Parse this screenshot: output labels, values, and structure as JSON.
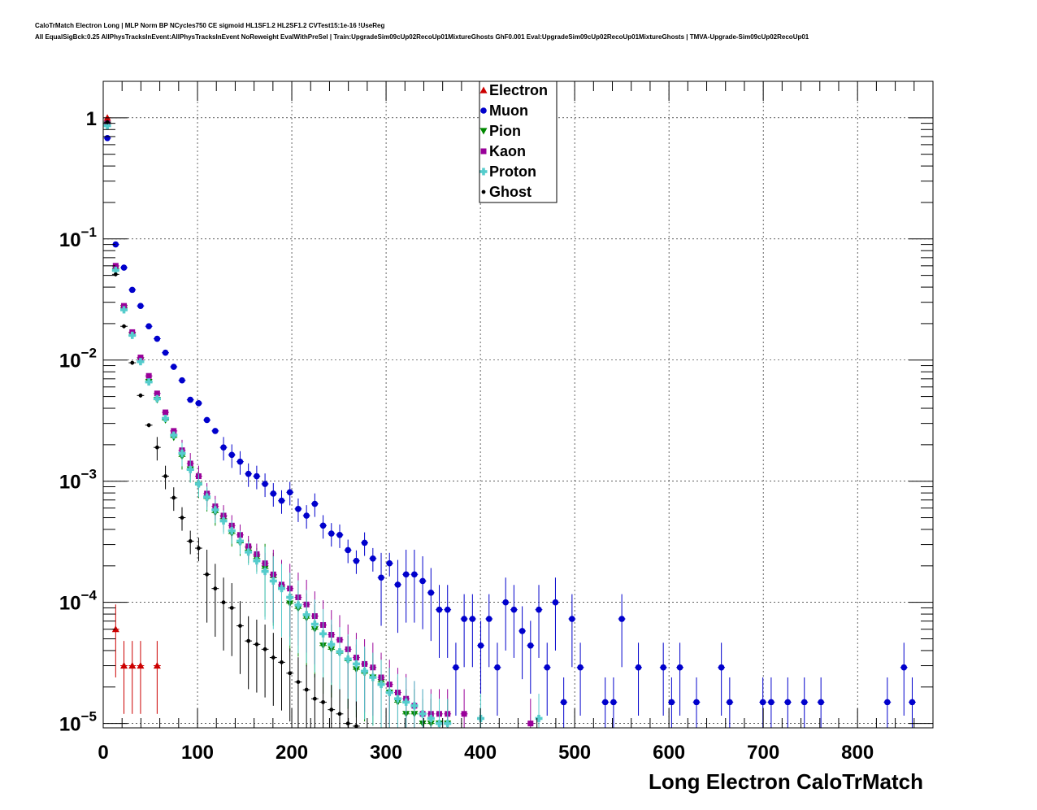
{
  "title_lines": [
    "CaloTrMatch Electron Long | MLP Norm BP NCycles750 CE sigmoid HL1SF1.2 HL2SF1.2 CVTest15:1e-16 !UseReg",
    "All EqualSigBck:0.25 AllPhysTracksInEvent:AllPhysTracksInEvent NoReweight EvalWithPreSel | Train:UpgradeSim09cUp02RecoUp01MixtureGhosts GhF0.001 Eval:UpgradeSim09cUp02RecoUp01MixtureGhosts | TMVA-Upgrade-Sim09cUp02RecoUp01"
  ],
  "chart_data": {
    "type": "scatter",
    "xlabel": "Long Electron CaloTrMatch",
    "ylabel": "",
    "xlim": [
      0,
      880
    ],
    "ylim": [
      9.2e-06,
      2.0
    ],
    "yscale": "log",
    "grid": true,
    "legend_position": "top-center",
    "x_ticks": [
      0,
      100,
      200,
      300,
      400,
      500,
      600,
      700,
      800
    ],
    "x_tick_labels": [
      "0",
      "100",
      "200",
      "300",
      "400",
      "500",
      "600",
      "700",
      "800"
    ],
    "y_ticks": [
      1,
      0.1,
      0.01,
      0.001,
      0.0001,
      1e-05
    ],
    "y_tick_labels": [
      {
        "base": "1",
        "exp": ""
      },
      {
        "base": "10",
        "exp": "−1"
      },
      {
        "base": "10",
        "exp": "−2"
      },
      {
        "base": "10",
        "exp": "−3"
      },
      {
        "base": "10",
        "exp": "−4"
      },
      {
        "base": "10",
        "exp": "−5"
      }
    ],
    "series": [
      {
        "name": "Electron",
        "color": "#cc0000",
        "marker": "triangle",
        "x": [
          4.4,
          13.2,
          22,
          30.8,
          39.6,
          57.2
        ],
        "y": [
          1.0,
          6e-05,
          3e-05,
          3e-05,
          3e-05,
          3e-05
        ]
      },
      {
        "name": "Muon",
        "color": "#0000cc",
        "marker": "circle",
        "x": [
          4.4,
          13.2,
          22,
          30.8,
          39.6,
          48.4,
          57.2,
          66,
          74.8,
          83.6,
          92.4,
          101.2,
          110,
          118.8,
          127.6,
          136.4,
          145.2,
          154,
          162.8,
          171.6,
          180.4,
          189.2,
          198,
          206.8,
          215.6,
          224.4,
          233.2,
          242,
          250.8,
          259.6,
          268.4,
          277.2,
          286,
          294.8,
          303.6,
          312.4,
          321.2,
          330,
          338.8,
          347.6,
          356.4,
          365.2,
          374,
          382.8,
          391.6,
          400.4,
          409.2,
          418,
          426.8,
          435.6,
          444.4,
          453.2,
          462,
          470.8,
          479.6,
          488.4,
          497.2,
          506,
          532.4,
          541.2,
          550,
          567.6,
          594,
          602.8,
          611.6,
          629.2,
          655.6,
          664.4,
          699.6,
          708.4,
          726,
          743.6,
          761.2,
          831.6,
          849.2,
          858
        ],
        "y": [
          0.68,
          0.09,
          0.058,
          0.038,
          0.028,
          0.019,
          0.015,
          0.0115,
          0.0088,
          0.0068,
          0.0047,
          0.0044,
          0.0032,
          0.0026,
          0.0019,
          0.00165,
          0.00145,
          0.00115,
          0.0011,
          0.00095,
          0.00079,
          0.00069,
          0.00081,
          0.00059,
          0.00052,
          0.00065,
          0.00043,
          0.00037,
          0.00036,
          0.00027,
          0.00022,
          0.00031,
          0.00023,
          0.00016,
          0.00021,
          0.00014,
          0.00017,
          0.00017,
          0.00015,
          0.00012,
          8.7e-05,
          8.7e-05,
          2.9e-05,
          7.3e-05,
          7.3e-05,
          4.4e-05,
          7.3e-05,
          2.9e-05,
          0.0001,
          8.7e-05,
          5.8e-05,
          4.4e-05,
          8.7e-05,
          2.9e-05,
          0.0001,
          1.5e-05,
          7.3e-05,
          2.9e-05,
          1.5e-05,
          1.5e-05,
          7.3e-05,
          2.9e-05,
          2.9e-05,
          1.5e-05,
          2.9e-05,
          1.5e-05,
          2.9e-05,
          1.5e-05,
          1.5e-05,
          1.5e-05,
          1.5e-05,
          1.5e-05,
          1.5e-05,
          1.5e-05,
          2.9e-05,
          1.5e-05
        ]
      },
      {
        "name": "Pion",
        "color": "#008800",
        "marker": "triangle-down",
        "x": [
          4.4,
          13.2,
          22,
          30.8,
          39.6,
          48.4,
          57.2,
          66,
          74.8,
          83.6,
          92.4,
          101.2,
          110,
          118.8,
          127.6,
          136.4,
          145.2,
          154,
          162.8,
          171.6,
          180.4,
          189.2,
          198,
          206.8,
          215.6,
          224.4,
          233.2,
          242,
          250.8,
          259.6,
          268.4,
          277.2,
          286,
          294.8,
          303.6,
          312.4,
          321.2,
          330,
          338.8,
          347.6,
          356.4,
          365.2
        ],
        "y": [
          0.88,
          0.057,
          0.027,
          0.016,
          0.0099,
          0.0066,
          0.0047,
          0.0032,
          0.0023,
          0.0016,
          0.00125,
          0.00093,
          0.00072,
          0.00055,
          0.00049,
          0.00037,
          0.00031,
          0.00027,
          0.00023,
          0.00019,
          0.00016,
          0.00013,
          9.8e-05,
          8.9e-05,
          7.4e-05,
          6e-05,
          4.4e-05,
          4.1e-05,
          3.8e-05,
          3.3e-05,
          2.8e-05,
          2.6e-05,
          2.4e-05,
          2.2e-05,
          1.8e-05,
          1.5e-05,
          1.2e-05,
          1.2e-05,
          1e-05,
          1e-05,
          1e-05,
          1e-05
        ]
      },
      {
        "name": "Kaon",
        "color": "#990099",
        "marker": "square",
        "x": [
          4.4,
          13.2,
          22,
          30.8,
          39.6,
          48.4,
          57.2,
          66,
          74.8,
          83.6,
          92.4,
          101.2,
          110,
          118.8,
          127.6,
          136.4,
          145.2,
          154,
          162.8,
          171.6,
          180.4,
          189.2,
          198,
          206.8,
          215.6,
          224.4,
          233.2,
          242,
          250.8,
          259.6,
          268.4,
          277.2,
          286,
          294.8,
          303.6,
          312.4,
          321.2,
          330,
          338.8,
          347.6,
          356.4,
          365.2,
          382.8,
          453.2
        ],
        "y": [
          0.9,
          0.06,
          0.028,
          0.017,
          0.0105,
          0.0074,
          0.0053,
          0.0037,
          0.0026,
          0.0018,
          0.0014,
          0.0011,
          0.00079,
          0.00062,
          0.00052,
          0.00043,
          0.00036,
          0.00029,
          0.00025,
          0.00021,
          0.00017,
          0.00014,
          0.00013,
          0.00011,
          9.6e-05,
          7.7e-05,
          6.5e-05,
          5.4e-05,
          4.9e-05,
          4.1e-05,
          3.5e-05,
          3.1e-05,
          2.9e-05,
          2.4e-05,
          2.1e-05,
          1.8e-05,
          1.6e-05,
          1.4e-05,
          1.2e-05,
          1.2e-05,
          1.2e-05,
          1.2e-05,
          1.2e-05,
          1e-05
        ]
      },
      {
        "name": "Proton",
        "color": "#55cccc",
        "marker": "cross",
        "x": [
          4.4,
          13.2,
          22,
          30.8,
          39.6,
          48.4,
          57.2,
          66,
          74.8,
          83.6,
          92.4,
          101.2,
          110,
          118.8,
          127.6,
          136.4,
          145.2,
          154,
          162.8,
          171.6,
          180.4,
          189.2,
          198,
          206.8,
          215.6,
          224.4,
          233.2,
          242,
          250.8,
          259.6,
          268.4,
          277.2,
          286,
          294.8,
          303.6,
          312.4,
          321.2,
          330,
          338.8,
          347.6,
          356.4,
          365.2,
          400.4,
          462
        ],
        "y": [
          0.86,
          0.055,
          0.026,
          0.016,
          0.0097,
          0.0066,
          0.0048,
          0.0033,
          0.0024,
          0.0017,
          0.00125,
          0.00095,
          0.00074,
          0.00058,
          0.00047,
          0.00039,
          0.00032,
          0.00026,
          0.00022,
          0.00018,
          0.00015,
          0.00013,
          0.00011,
          9.5e-05,
          7.9e-05,
          6.6e-05,
          5.5e-05,
          4.5e-05,
          3.9e-05,
          3.4e-05,
          3.1e-05,
          2.7e-05,
          2.4e-05,
          2.1e-05,
          1.8e-05,
          1.6e-05,
          1.5e-05,
          1.4e-05,
          1.2e-05,
          1.1e-05,
          1e-05,
          1e-05,
          1.1e-05,
          1.1e-05
        ]
      },
      {
        "name": "Ghost",
        "color": "#000000",
        "marker": "circle-small",
        "x": [
          4.4,
          13.2,
          22,
          30.8,
          39.6,
          48.4,
          57.2,
          66,
          74.8,
          83.6,
          92.4,
          101.2,
          110,
          118.8,
          127.6,
          136.4,
          145.2,
          154,
          162.8,
          171.6,
          180.4,
          189.2,
          198,
          206.8,
          215.6,
          224.4,
          233.2,
          242,
          250.8,
          259.6,
          268.4
        ],
        "y": [
          0.92,
          0.051,
          0.019,
          0.0095,
          0.0051,
          0.0029,
          0.0019,
          0.0011,
          0.00073,
          0.0005,
          0.00032,
          0.00028,
          0.00017,
          0.00013,
          0.0001,
          9e-05,
          6.4e-05,
          4.8e-05,
          4.5e-05,
          4.1e-05,
          3.5e-05,
          3.2e-05,
          2.6e-05,
          2.2e-05,
          1.9e-05,
          1.6e-05,
          1.5e-05,
          1.3e-05,
          1.2e-05,
          1e-05,
          9.5e-06
        ]
      }
    ]
  }
}
